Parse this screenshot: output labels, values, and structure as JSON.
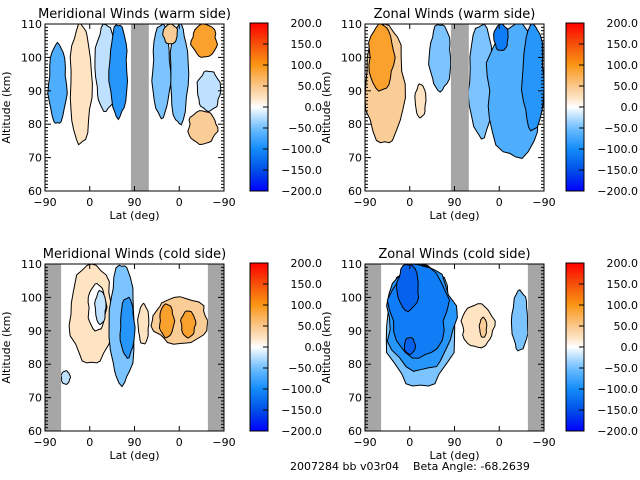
{
  "footer": {
    "id_text": "2007284 bb v03r04",
    "beta_label": "Beta Angle:",
    "beta_value": "-68.2639"
  },
  "chart_data": [
    {
      "type": "heatmap",
      "subtype": "filled-contour",
      "title": "Meridional Winds (warm side)",
      "xlabel": "Lat (deg)",
      "ylabel": "Altitude (km)",
      "xticks": [
        "-90",
        "0",
        "90",
        "0",
        "-90"
      ],
      "yticks": [
        60,
        70,
        80,
        90,
        100,
        110
      ],
      "ylim": [
        60,
        110
      ],
      "colorbar": {
        "ticks": [
          "200.0",
          "150.0",
          "100.0",
          "50.0",
          "0.0",
          "-50.0",
          "-100.0",
          "-150.0",
          "-200.0"
        ],
        "range": [
          -200,
          200
        ]
      },
      "gaps": [
        [
          0.48,
          0.58
        ]
      ],
      "features": [
        {
          "x": [
            0.02,
            0.12
          ],
          "y": [
            80,
            104
          ],
          "value": -60
        },
        {
          "x": [
            0.14,
            0.26
          ],
          "y": [
            74,
            110
          ],
          "value": 20
        },
        {
          "x": [
            0.28,
            0.4
          ],
          "y": [
            84,
            110
          ],
          "value": -25
        },
        {
          "x": [
            0.36,
            0.46
          ],
          "y": [
            82,
            110
          ],
          "value": -90
        },
        {
          "x": [
            0.6,
            0.7
          ],
          "y": [
            82,
            110
          ],
          "value": -45
        },
        {
          "x": [
            0.7,
            0.8
          ],
          "y": [
            80,
            110
          ],
          "value": -30
        },
        {
          "x": [
            0.66,
            0.74
          ],
          "y": [
            104,
            110
          ],
          "value": 50
        },
        {
          "x": [
            0.82,
            0.96
          ],
          "y": [
            100,
            110
          ],
          "value": 80
        },
        {
          "x": [
            0.8,
            0.96
          ],
          "y": [
            74,
            84
          ],
          "value": 40
        },
        {
          "x": [
            0.85,
            0.98
          ],
          "y": [
            84,
            96
          ],
          "value": -20
        }
      ]
    },
    {
      "type": "heatmap",
      "subtype": "filled-contour",
      "title": "Zonal Winds (warm side)",
      "xlabel": "Lat (deg)",
      "ylabel": "Altitude (km)",
      "xticks": [
        "-90",
        "0",
        "90",
        "0",
        "-90"
      ],
      "yticks": [
        60,
        70,
        80,
        90,
        100,
        110
      ],
      "ylim": [
        60,
        110
      ],
      "colorbar": {
        "ticks": [
          "200.0",
          "150.0",
          "100.0",
          "50.0",
          "0.0",
          "-50.0",
          "-100.0",
          "-150.0",
          "-200.0"
        ],
        "range": [
          -200,
          200
        ]
      },
      "gaps": [
        [
          0.48,
          0.58
        ]
      ],
      "features": [
        {
          "x": [
            0.0,
            0.22
          ],
          "y": [
            74,
            110
          ],
          "value": 40
        },
        {
          "x": [
            0.02,
            0.16
          ],
          "y": [
            90,
            110
          ],
          "value": 80
        },
        {
          "x": [
            0.28,
            0.34
          ],
          "y": [
            82,
            92
          ],
          "value": 25
        },
        {
          "x": [
            0.36,
            0.48
          ],
          "y": [
            90,
            110
          ],
          "value": -35
        },
        {
          "x": [
            0.58,
            0.72
          ],
          "y": [
            76,
            110
          ],
          "value": -45
        },
        {
          "x": [
            0.68,
            1.0
          ],
          "y": [
            70,
            110
          ],
          "value": -70
        },
        {
          "x": [
            0.72,
            0.8
          ],
          "y": [
            102,
            110
          ],
          "value": -120
        },
        {
          "x": [
            0.88,
            1.0
          ],
          "y": [
            78,
            110
          ],
          "value": -100
        }
      ]
    },
    {
      "type": "heatmap",
      "subtype": "filled-contour",
      "title": "Meridional Winds (cold side)",
      "xlabel": "Lat (deg)",
      "ylabel": "Altitude (km)",
      "xticks": [
        "-90",
        "0",
        "90",
        "0",
        "-90"
      ],
      "yticks": [
        60,
        70,
        80,
        90,
        100,
        110
      ],
      "ylim": [
        60,
        110
      ],
      "colorbar": {
        "ticks": [
          "200.0",
          "150.0",
          "100.0",
          "50.0",
          "0.0",
          "-50.0",
          "-100.0",
          "-150.0",
          "-200.0"
        ],
        "range": [
          -200,
          200
        ]
      },
      "gaps": [
        [
          0.0,
          0.09
        ],
        [
          0.91,
          1.0
        ]
      ],
      "features": [
        {
          "x": [
            0.14,
            0.38
          ],
          "y": [
            80,
            110
          ],
          "value": 20
        },
        {
          "x": [
            0.24,
            0.34
          ],
          "y": [
            90,
            104
          ],
          "value": 0
        },
        {
          "x": [
            0.28,
            0.34
          ],
          "y": [
            92,
            102
          ],
          "value": -25
        },
        {
          "x": [
            0.36,
            0.5
          ],
          "y": [
            74,
            110
          ],
          "value": -30
        },
        {
          "x": [
            0.42,
            0.5
          ],
          "y": [
            82,
            100
          ],
          "value": -80
        },
        {
          "x": [
            0.09,
            0.14
          ],
          "y": [
            74,
            78
          ],
          "value": -25
        },
        {
          "x": [
            0.52,
            0.58
          ],
          "y": [
            86,
            98
          ],
          "value": 20
        },
        {
          "x": [
            0.6,
            0.91
          ],
          "y": [
            86,
            100
          ],
          "value": 40
        },
        {
          "x": [
            0.64,
            0.72
          ],
          "y": [
            88,
            98
          ],
          "value": 90
        },
        {
          "x": [
            0.76,
            0.84
          ],
          "y": [
            88,
            96
          ],
          "value": 80
        }
      ]
    },
    {
      "type": "heatmap",
      "subtype": "filled-contour",
      "title": "Zonal Winds (cold side)",
      "xlabel": "Lat (deg)",
      "ylabel": "Altitude (km)",
      "xticks": [
        "-90",
        "0",
        "90",
        "0",
        "-90"
      ],
      "yticks": [
        60,
        70,
        80,
        90,
        100,
        110
      ],
      "ylim": [
        60,
        110
      ],
      "colorbar": {
        "ticks": [
          "200.0",
          "150.0",
          "100.0",
          "50.0",
          "0.0",
          "-50.0",
          "-100.0",
          "-150.0",
          "-200.0"
        ],
        "range": [
          -200,
          200
        ]
      },
      "gaps": [
        [
          0.0,
          0.09
        ],
        [
          0.91,
          1.0
        ]
      ],
      "features": [
        {
          "x": [
            0.12,
            0.5
          ],
          "y": [
            73,
            110
          ],
          "value": -35
        },
        {
          "x": [
            0.12,
            0.5
          ],
          "y": [
            78,
            110
          ],
          "value": -80
        },
        {
          "x": [
            0.14,
            0.46
          ],
          "y": [
            82,
            110
          ],
          "value": -110
        },
        {
          "x": [
            0.18,
            0.3
          ],
          "y": [
            96,
            110
          ],
          "value": -140
        },
        {
          "x": [
            0.22,
            0.28
          ],
          "y": [
            83,
            88
          ],
          "value": -150
        },
        {
          "x": [
            0.54,
            0.72
          ],
          "y": [
            85,
            98
          ],
          "value": 20
        },
        {
          "x": [
            0.64,
            0.68
          ],
          "y": [
            88,
            94
          ],
          "value": 50
        },
        {
          "x": [
            0.82,
            0.91
          ],
          "y": [
            84,
            102
          ],
          "value": -30
        }
      ]
    }
  ]
}
